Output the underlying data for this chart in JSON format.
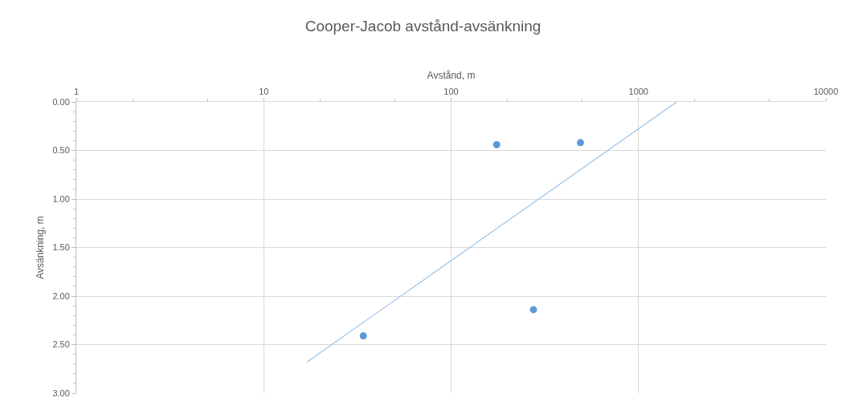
{
  "chart_data": {
    "type": "scatter",
    "title": "Cooper-Jacob avstånd-avsänkning",
    "xlabel": "Avstånd, m",
    "ylabel": "Avsänkning, m",
    "log": "x",
    "grid": true,
    "xlim": [
      1,
      10000
    ],
    "xticks": [
      1,
      10,
      100,
      1000,
      10000
    ],
    "ylim": [
      3,
      0
    ],
    "yticks": [
      {
        "value": 0,
        "label": "0.00"
      },
      {
        "value": 0.5,
        "label": "0.50"
      },
      {
        "value": 1,
        "label": "1.00"
      },
      {
        "value": 1.5,
        "label": "1.50"
      },
      {
        "value": 2,
        "label": "2.00"
      },
      {
        "value": 2.5,
        "label": "2.50"
      },
      {
        "value": 3,
        "label": "3.00"
      }
    ],
    "series": [
      {
        "color": "#5b9bd5",
        "marker": "circle",
        "x": [
          34,
          175,
          275,
          490
        ],
        "values": [
          2.41,
          0.44,
          2.14,
          0.42
        ]
      },
      {
        "type": "line",
        "color": "#9dc3e6",
        "line_style": "solid",
        "marker": "none",
        "x": [
          17,
          1600
        ],
        "values": [
          2.68,
          0
        ]
      }
    ]
  }
}
